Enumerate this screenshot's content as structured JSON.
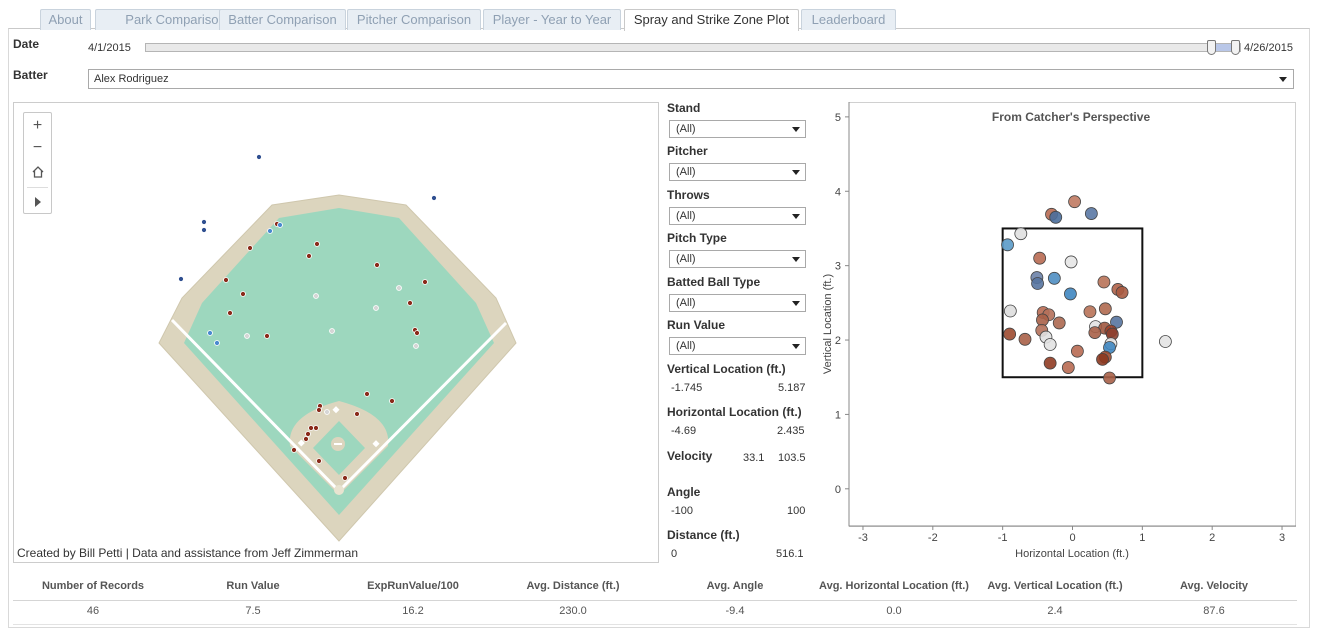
{
  "tabs": [
    "About",
    "Park Comparison",
    "Batter Comparison",
    "Pitcher Comparison",
    "Player - Year to Year",
    "Spray and Strike Zone Plot",
    "Leaderboard"
  ],
  "active_tab": "Spray and Strike Zone Plot",
  "date": {
    "label": "Date",
    "start": "4/1/2015",
    "end": "4/26/2015"
  },
  "batter": {
    "label": "Batter",
    "value": "Alex Rodriguez"
  },
  "map": {
    "credit": "Created by Bill Petti | Data and assistance from Jeff Zimmerman",
    "zoom_in": "+",
    "zoom_out": "−"
  },
  "filters": {
    "stand": {
      "label": "Stand",
      "value": "(All)"
    },
    "pitcher": {
      "label": "Pitcher",
      "value": "(All)"
    },
    "throws": {
      "label": "Throws",
      "value": "(All)"
    },
    "pitch_type": {
      "label": "Pitch Type",
      "value": "(All)"
    },
    "batted_ball": {
      "label": "Batted Ball Type",
      "value": "(All)"
    },
    "run_value": {
      "label": "Run Value",
      "value": "(All)"
    },
    "vert": {
      "label": "Vertical Location (ft.)",
      "min": "-1.745",
      "max": "5.187"
    },
    "horiz": {
      "label": "Horizontal Location (ft.)",
      "min": "-4.69",
      "max": "2.435"
    },
    "velocity": {
      "label": "Velocity",
      "min": "33.1",
      "max": "103.5"
    },
    "angle": {
      "label": "Angle",
      "min": "-100",
      "max": "100"
    },
    "distance": {
      "label": "Distance (ft.)",
      "min": "0",
      "max": "516.1"
    }
  },
  "chart_data": {
    "type": "scatter",
    "title": "From Catcher's Perspective",
    "xlabel": "Horizontal Location (ft.)",
    "ylabel": "Vertical Location (ft.)",
    "xlim": [
      -3.2,
      3.2
    ],
    "ylim": [
      -0.5,
      5.2
    ],
    "xticks": [
      "-3",
      "-2",
      "-1",
      "0",
      "1",
      "2",
      "3"
    ],
    "yticks": [
      "0",
      "1",
      "2",
      "3",
      "4",
      "5"
    ],
    "strike_zone": {
      "x": [
        -1.0,
        1.0
      ],
      "y": [
        1.5,
        3.5
      ]
    },
    "colors": {
      "negative": "#4a7fb0",
      "neutral": "#e3e3e3",
      "positive": "#a5492e"
    },
    "points": [
      {
        "x": 0.03,
        "y": 3.86,
        "c": "#c07a62"
      },
      {
        "x": -0.3,
        "y": 3.69,
        "c": "#b86a52"
      },
      {
        "x": -0.24,
        "y": 3.65,
        "c": "#4a6e9c"
      },
      {
        "x": 0.27,
        "y": 3.7,
        "c": "#5a78a4"
      },
      {
        "x": -0.74,
        "y": 3.43,
        "c": "#e0e0e0"
      },
      {
        "x": -0.93,
        "y": 3.28,
        "c": "#5a9ac8"
      },
      {
        "x": -0.47,
        "y": 3.1,
        "c": "#b86a52"
      },
      {
        "x": -0.02,
        "y": 3.05,
        "c": "#e6e6e6"
      },
      {
        "x": -0.51,
        "y": 2.84,
        "c": "#6c82a8"
      },
      {
        "x": -0.5,
        "y": 2.76,
        "c": "#5674a0"
      },
      {
        "x": -0.26,
        "y": 2.83,
        "c": "#4f8ec2"
      },
      {
        "x": 0.45,
        "y": 2.78,
        "c": "#b87258"
      },
      {
        "x": 0.65,
        "y": 2.68,
        "c": "#b06248"
      },
      {
        "x": 0.71,
        "y": 2.64,
        "c": "#a85a40"
      },
      {
        "x": -0.03,
        "y": 2.62,
        "c": "#3f86c0"
      },
      {
        "x": -0.89,
        "y": 2.39,
        "c": "#dedede"
      },
      {
        "x": -0.42,
        "y": 2.37,
        "c": "#b86a52"
      },
      {
        "x": -0.34,
        "y": 2.34,
        "c": "#b4705a"
      },
      {
        "x": -0.43,
        "y": 2.27,
        "c": "#a86048"
      },
      {
        "x": -0.19,
        "y": 2.23,
        "c": "#ac6850"
      },
      {
        "x": 0.25,
        "y": 2.38,
        "c": "#b87258"
      },
      {
        "x": 0.47,
        "y": 2.42,
        "c": "#b06a50"
      },
      {
        "x": 0.63,
        "y": 2.24,
        "c": "#5674a0"
      },
      {
        "x": 0.33,
        "y": 2.18,
        "c": "#e2e2e2"
      },
      {
        "x": 0.46,
        "y": 2.16,
        "c": "#a05840"
      },
      {
        "x": 0.55,
        "y": 2.12,
        "c": "#a04028"
      },
      {
        "x": 0.57,
        "y": 2.08,
        "c": "#8c4030"
      },
      {
        "x": 0.32,
        "y": 2.1,
        "c": "#a86048"
      },
      {
        "x": -0.44,
        "y": 2.13,
        "c": "#b4705a"
      },
      {
        "x": -0.9,
        "y": 2.08,
        "c": "#9c4a30"
      },
      {
        "x": -0.38,
        "y": 2.04,
        "c": "#e0e0e0"
      },
      {
        "x": -0.68,
        "y": 2.01,
        "c": "#a86048"
      },
      {
        "x": -0.32,
        "y": 1.94,
        "c": "#e2e2e2"
      },
      {
        "x": 0.55,
        "y": 1.95,
        "c": "#e6e6e6"
      },
      {
        "x": 0.53,
        "y": 1.9,
        "c": "#3f86c0"
      },
      {
        "x": 0.07,
        "y": 1.85,
        "c": "#b86a52"
      },
      {
        "x": 0.47,
        "y": 1.77,
        "c": "#9c4a30"
      },
      {
        "x": 0.43,
        "y": 1.74,
        "c": "#8c3820"
      },
      {
        "x": -0.32,
        "y": 1.69,
        "c": "#903c24"
      },
      {
        "x": -0.06,
        "y": 1.63,
        "c": "#b86a52"
      },
      {
        "x": 0.53,
        "y": 1.49,
        "c": "#a86048"
      },
      {
        "x": 1.33,
        "y": 1.98,
        "c": "#e3e3e3"
      }
    ]
  },
  "stats": {
    "headers": [
      "Number of Records",
      "Run Value",
      "ExpRunValue/100",
      "Avg. Distance (ft.)",
      "Avg. Angle",
      "Avg. Horizontal Location (ft.)",
      "Avg. Vertical Location (ft.)",
      "Avg. Velocity"
    ],
    "values": [
      "46",
      "7.5",
      "16.2",
      "230.0",
      "-9.4",
      "0.0",
      "2.4",
      "87.6"
    ]
  }
}
